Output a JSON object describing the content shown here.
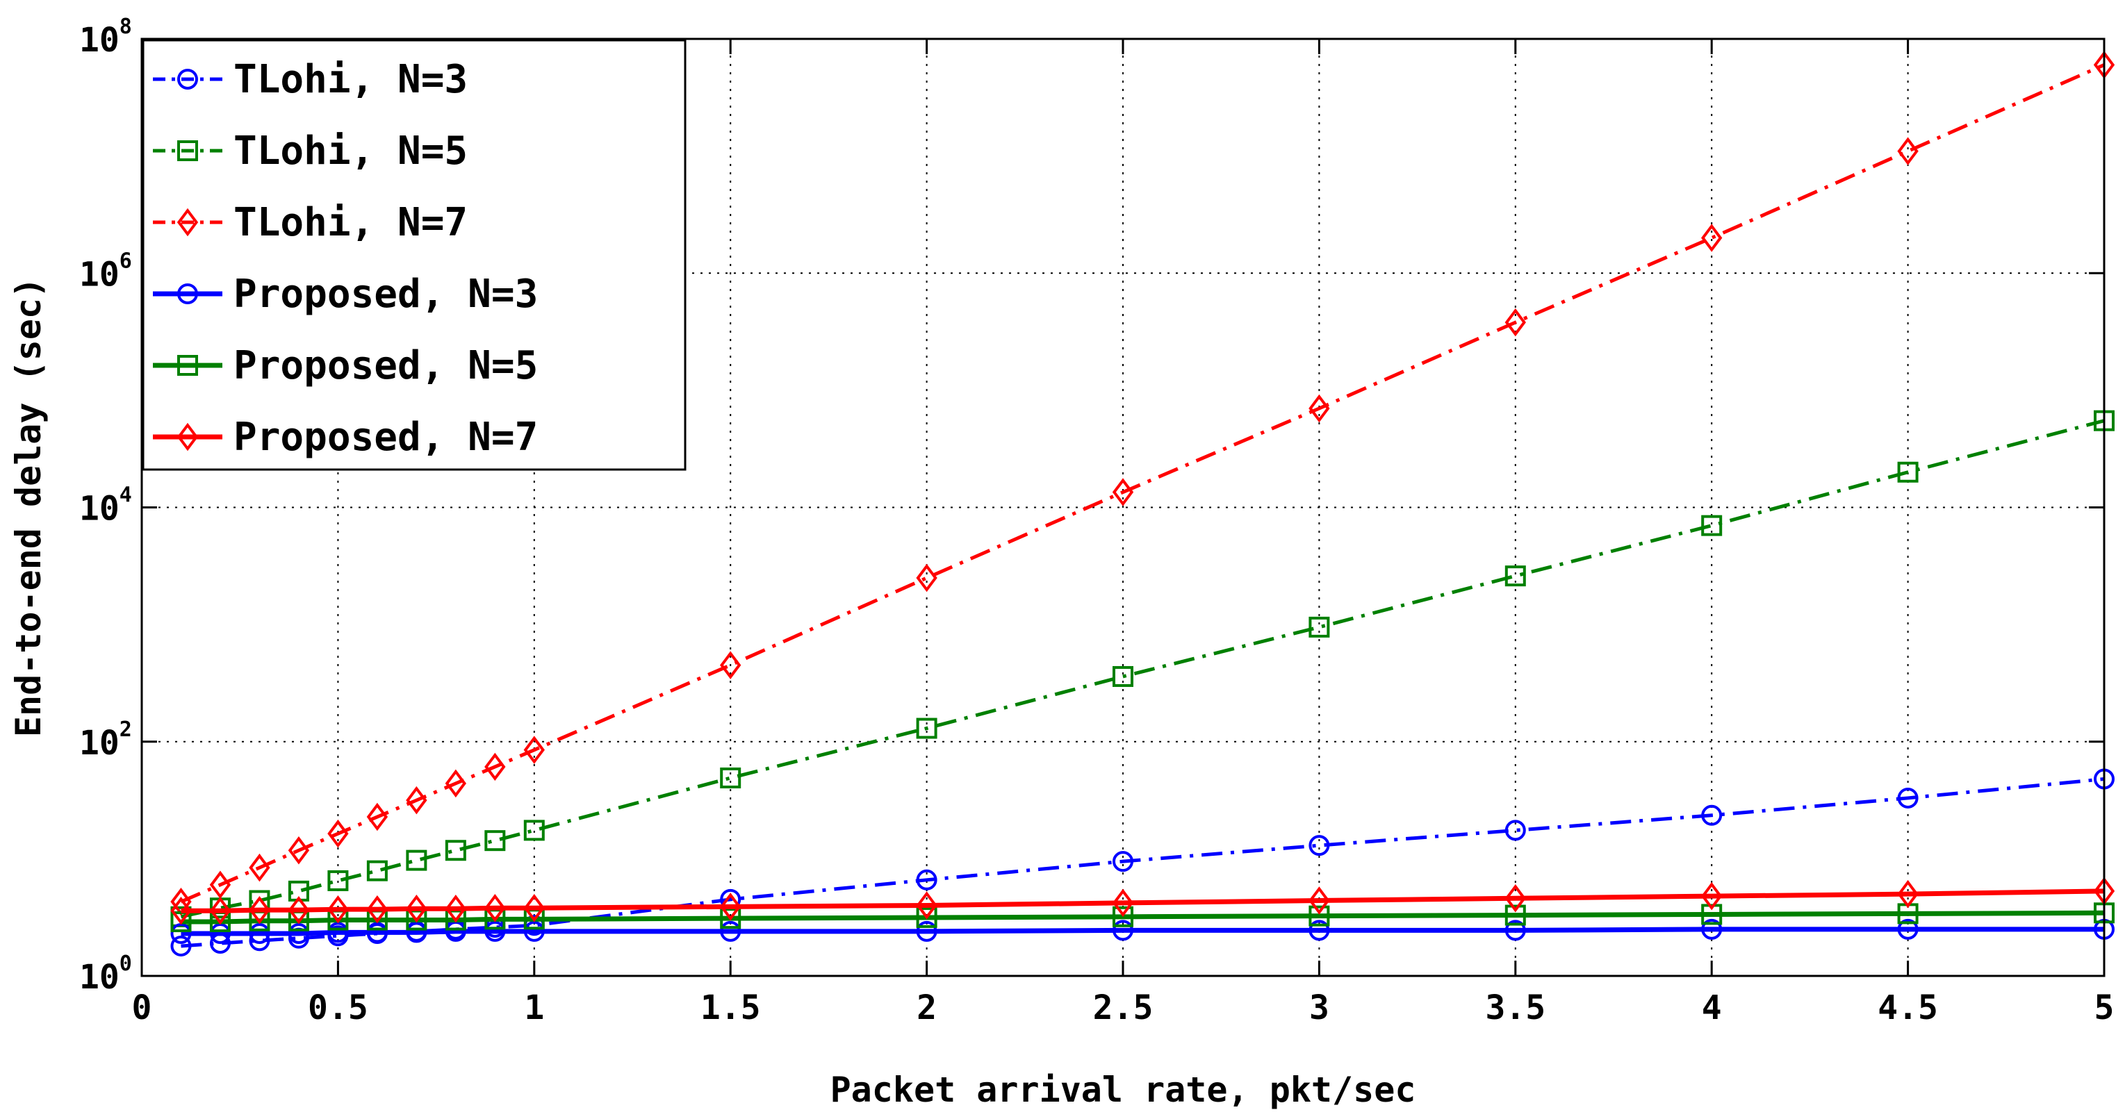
{
  "chart_data": {
    "type": "line",
    "title": "",
    "xlabel": "Packet arrival rate, pkt/sec",
    "ylabel": "End-to-end delay (sec)",
    "xlim": [
      0,
      5
    ],
    "ylim": [
      1,
      100000000
    ],
    "yscale": "log",
    "grid": true,
    "legend_position": "top-left",
    "x_ticks": [
      "0",
      "0.5",
      "1",
      "1.5",
      "2",
      "2.5",
      "3",
      "3.5",
      "4",
      "4.5",
      "5"
    ],
    "y_ticks": [
      {
        "base": "10",
        "exp": "0"
      },
      {
        "base": "10",
        "exp": "2"
      },
      {
        "base": "10",
        "exp": "4"
      },
      {
        "base": "10",
        "exp": "6"
      },
      {
        "base": "10",
        "exp": "8"
      }
    ],
    "x": [
      0.1,
      0.2,
      0.3,
      0.4,
      0.5,
      0.6,
      0.7,
      0.8,
      0.9,
      1.0,
      1.5,
      2.0,
      2.5,
      3.0,
      3.5,
      4.0,
      4.5,
      5.0
    ],
    "series": [
      {
        "name": "TLohi, N=3",
        "color": "#0000ff",
        "style": "dashdot",
        "marker": "circle",
        "values": [
          1.8,
          1.9,
          2.0,
          2.1,
          2.2,
          2.3,
          2.4,
          2.5,
          2.6,
          2.7,
          4.5,
          6.6,
          9.5,
          13,
          17.5,
          23.5,
          33,
          48
        ]
      },
      {
        "name": "TLohi, N=5",
        "color": "#008000",
        "style": "dashdot",
        "marker": "square",
        "values": [
          3.2,
          3.8,
          4.4,
          5.3,
          6.5,
          7.9,
          9.7,
          11.8,
          14.3,
          17.5,
          49,
          130,
          360,
          950,
          2600,
          7000,
          20000,
          55000
        ]
      },
      {
        "name": "TLohi, N=7",
        "color": "#ff0000",
        "style": "dashdot",
        "marker": "diamond",
        "values": [
          4.3,
          6.0,
          8.4,
          11.8,
          16.4,
          22.8,
          31.6,
          44,
          61,
          85,
          450,
          2500,
          13500,
          70000,
          380000,
          2000000,
          11000000,
          60000000
        ]
      },
      {
        "name": "Proposed, N=3",
        "color": "#0000ff",
        "style": "solid",
        "marker": "circle",
        "values": [
          2.3,
          2.3,
          2.3,
          2.3,
          2.35,
          2.35,
          2.35,
          2.4,
          2.4,
          2.4,
          2.4,
          2.4,
          2.45,
          2.45,
          2.45,
          2.5,
          2.5,
          2.5
        ]
      },
      {
        "name": "Proposed, N=5",
        "color": "#008000",
        "style": "solid",
        "marker": "square",
        "values": [
          2.9,
          2.9,
          2.95,
          2.95,
          3.0,
          3.0,
          3.0,
          3.0,
          3.05,
          3.05,
          3.1,
          3.15,
          3.2,
          3.25,
          3.3,
          3.35,
          3.4,
          3.45
        ]
      },
      {
        "name": "Proposed, N=7",
        "color": "#ff0000",
        "style": "solid",
        "marker": "diamond",
        "values": [
          3.6,
          3.6,
          3.65,
          3.65,
          3.7,
          3.7,
          3.75,
          3.75,
          3.8,
          3.8,
          3.9,
          4.0,
          4.2,
          4.4,
          4.6,
          4.8,
          5.0,
          5.3
        ]
      }
    ]
  }
}
